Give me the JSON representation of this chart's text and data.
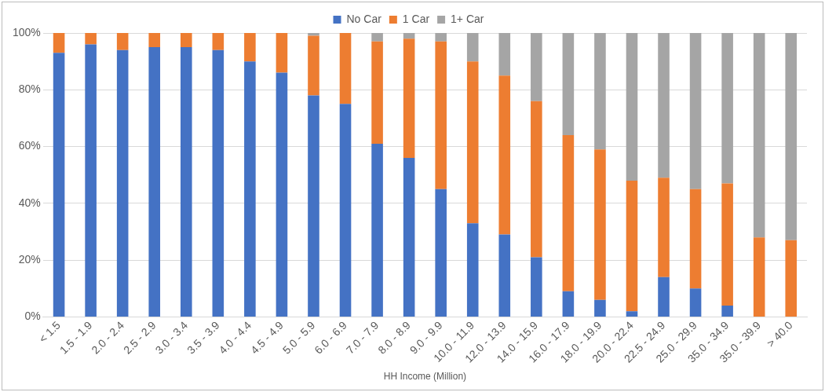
{
  "chart_data": {
    "type": "bar",
    "stacked": true,
    "xlabel": "HH Income (Million)",
    "categories": [
      "< 1.5",
      "1.5 - 1.9",
      "2.0 - 2.4",
      "2.5 - 2.9",
      "3.0 - 3.4",
      "3.5 - 3.9",
      "4.0 - 4.4",
      "4.5 - 4.9",
      "5.0 - 5.9",
      "6.0 - 6.9",
      "7.0 - 7.9",
      "8.0 - 8.9",
      "9.0 - 9.9",
      "10.0 - 11.9",
      "12.0 - 13.9",
      "14.0 - 15.9",
      "16.0 - 17.9",
      "18.0 - 19.9",
      "20.0 - 22.4",
      "22.5 - 24.9",
      "25.0 - 29.9",
      "35.0 - 34.9",
      "35.0 - 39.9",
      "> 40.0"
    ],
    "series": [
      {
        "name": "No Car",
        "color": "#4472c4",
        "values": [
          93,
          96,
          94,
          95,
          95,
          94,
          90,
          86,
          78,
          75,
          61,
          56,
          45,
          33,
          29,
          21,
          9,
          6,
          2,
          14,
          10,
          4,
          0,
          0
        ]
      },
      {
        "name": "1 Car",
        "color": "#ed7d31",
        "values": [
          7,
          4,
          6,
          5,
          5,
          6,
          10,
          14,
          21,
          25,
          36,
          42,
          52,
          57,
          56,
          55,
          55,
          53,
          46,
          35,
          35,
          43,
          28,
          27
        ]
      },
      {
        "name": "1+ Car",
        "color": "#a5a5a5",
        "values": [
          0,
          0,
          0,
          0,
          0,
          0,
          0,
          0,
          1,
          0,
          3,
          2,
          3,
          10,
          15,
          24,
          36,
          41,
          52,
          51,
          55,
          53,
          72,
          73
        ]
      }
    ],
    "ylim": [
      0,
      100
    ],
    "yticks": [
      {
        "value": 0,
        "label": "0%"
      },
      {
        "value": 20,
        "label": "20%"
      },
      {
        "value": 40,
        "label": "40%"
      },
      {
        "value": 60,
        "label": "60%"
      },
      {
        "value": 80,
        "label": "80%"
      },
      {
        "value": 100,
        "label": "100%"
      }
    ],
    "grid": "y",
    "legend": "top"
  }
}
